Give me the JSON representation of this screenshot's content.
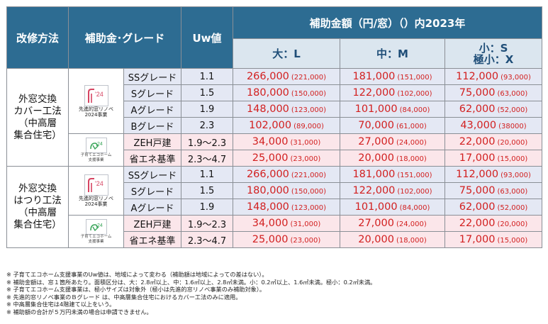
{
  "header": {
    "method": "改修方法",
    "grade": "補助金･グレード",
    "uw": "Uw値",
    "amount": "補助金額（円/窓）（）内2023年",
    "size_l": "大：L",
    "size_m": "中：M",
    "size_s1": "小：S",
    "size_s2": "極小：X"
  },
  "logos": {
    "sendan_year": "'24",
    "sendan_line1": "先進的窓リノベ",
    "sendan_line2": "2024事業",
    "kosodate_year": "24",
    "kosodate_line1": "子育てエコホーム",
    "kosodate_line2": "支援事業"
  },
  "section1": {
    "method_lines": [
      "外窓交換",
      "カバー工法",
      "（中高層",
      "集合住宅）"
    ],
    "rows": [
      {
        "grade": "SSグレード",
        "uw": "1.1",
        "l": "266,000",
        "l_prev": "(221,000)",
        "m": "181,000",
        "m_prev": "(151,000)",
        "s": "112,000",
        "s_prev": "(93,000)"
      },
      {
        "grade": "Sグレード",
        "uw": "1.5",
        "l": "180,000",
        "l_prev": "(150,000)",
        "m": "122,000",
        "m_prev": "(102,000)",
        "s": "75,000",
        "s_prev": "(63,000)"
      },
      {
        "grade": "Aグレード",
        "uw": "1.9",
        "l": "148,000",
        "l_prev": "(123,000)",
        "m": "101,000",
        "m_prev": "(84,000)",
        "s": "62,000",
        "s_prev": "(52,000)"
      },
      {
        "grade": "Bグレード",
        "uw": "2.3",
        "l": "102,000",
        "l_prev": "(89,000)",
        "m": "70,000",
        "m_prev": "(61,000)",
        "s": "43,000",
        "s_prev": "(38000)"
      },
      {
        "grade": "ZEH戸建",
        "uw": "1.9～2.3",
        "l": "34,000",
        "l_prev": "(31,000)",
        "m": "27,000",
        "m_prev": "(24,000)",
        "s": "22,000",
        "s_prev": "(20,000)"
      },
      {
        "grade": "省エネ基準",
        "uw": "2.3～4.7",
        "l": "25,000",
        "l_prev": "(23,000)",
        "m": "20,000",
        "m_prev": "(18,000)",
        "s": "17,000",
        "s_prev": "(15,000)"
      }
    ]
  },
  "section2": {
    "method_lines": [
      "外窓交換",
      "はつり工法",
      "（中高層",
      "集合住宅）"
    ],
    "rows": [
      {
        "grade": "SSグレード",
        "uw": "1.1",
        "l": "266,000",
        "l_prev": "(221,000)",
        "m": "181,000",
        "m_prev": "(151,000)",
        "s": "112,000",
        "s_prev": "(93,000)"
      },
      {
        "grade": "Sグレード",
        "uw": "1.5",
        "l": "180,000",
        "l_prev": "(150,000)",
        "m": "122,000",
        "m_prev": "(102,000)",
        "s": "75,000",
        "s_prev": "(63,000)"
      },
      {
        "grade": "Aグレード",
        "uw": "1.9",
        "l": "148,000",
        "l_prev": "(123,000)",
        "m": "101,000",
        "m_prev": "(84,000)",
        "s": "62,000",
        "s_prev": "(52,000)"
      },
      {
        "grade": "ZEH戸建",
        "uw": "1.9～2.3",
        "l": "34,000",
        "l_prev": "(31,000)",
        "m": "27,000",
        "m_prev": "(24,000)",
        "s": "22,000",
        "s_prev": "(20,000)"
      },
      {
        "grade": "省エネ基準",
        "uw": "2.3～4.7",
        "l": "25,000",
        "l_prev": "(23,000)",
        "m": "20,000",
        "m_prev": "(18,000)",
        "s": "17,000",
        "s_prev": "(15,000)"
      }
    ]
  },
  "notes": [
    "※ 子育てエコホーム支援事業のUw値は、地域によって変わる（補助額は地域によっての差はない）。",
    "※ 補助金額は、窓１箇所あたり。面積区分は、大：2.8㎡以上、中：1.6㎡以上、2.8㎡未満。小：0.2㎡以上、1.6㎡未満。極小：0.2㎡未満。",
    "※ 子育てエコホーム支援事業は、極小サイズは対象外（極小は先進的窓リノベ事業のみ補助対象）。",
    "※ 先進的窓リノベ事業のＢグレード は、中高層集合住宅におけるカバー工法のみに適用。",
    "※ 中高層集合住宅は4階建て以上をいう。",
    "※ 補助額の合計が５万円未満の場合は申請できません。"
  ],
  "colors": {
    "header_bg": "#2d6c92",
    "subheader_bg": "#dbe6ef",
    "row_blue": "#e4e8f4",
    "row_pink": "#fbe6ea",
    "amount_red": "#d21f1f"
  }
}
